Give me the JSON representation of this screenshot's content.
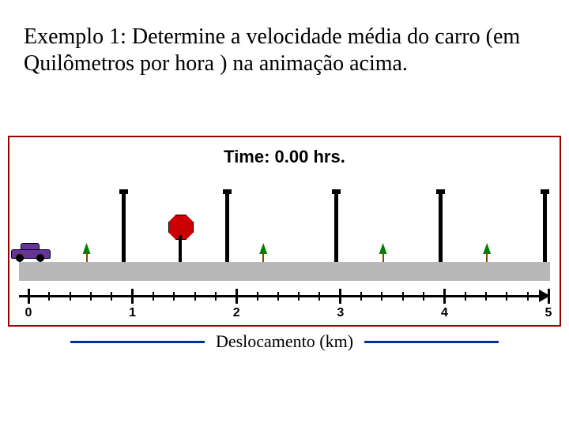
{
  "title_text": "Exemplo 1: Determine a velocidade média do carro (em Quilômetros por hora ) na animação acima.",
  "figure": {
    "border_color": "#990000",
    "time_label": "Time: 0.00 hrs.",
    "road_color": "#b8b8b8",
    "axis": {
      "range": [
        0,
        5
      ],
      "major_ticks": [
        0,
        1,
        2,
        3,
        4,
        5
      ],
      "minor_per_major": 5,
      "labels": [
        "0",
        "1",
        "2",
        "3",
        "4",
        "5"
      ]
    },
    "car": {
      "x": 0,
      "color": "#663399"
    },
    "poles": [
      {
        "x": 1.0,
        "short": false
      },
      {
        "x": 2.0,
        "short": false
      },
      {
        "x": 3.05,
        "short": false
      },
      {
        "x": 4.05,
        "short": false
      },
      {
        "x": 5.05,
        "short": false
      }
    ],
    "trees": [
      {
        "x": 0.65
      },
      {
        "x": 2.35
      },
      {
        "x": 3.5
      },
      {
        "x": 4.5
      }
    ],
    "stop_sign": {
      "x": 1.55,
      "color": "#cc0000"
    }
  },
  "caption": {
    "text": "Deslocamento (km)",
    "line_color": "#003399"
  }
}
